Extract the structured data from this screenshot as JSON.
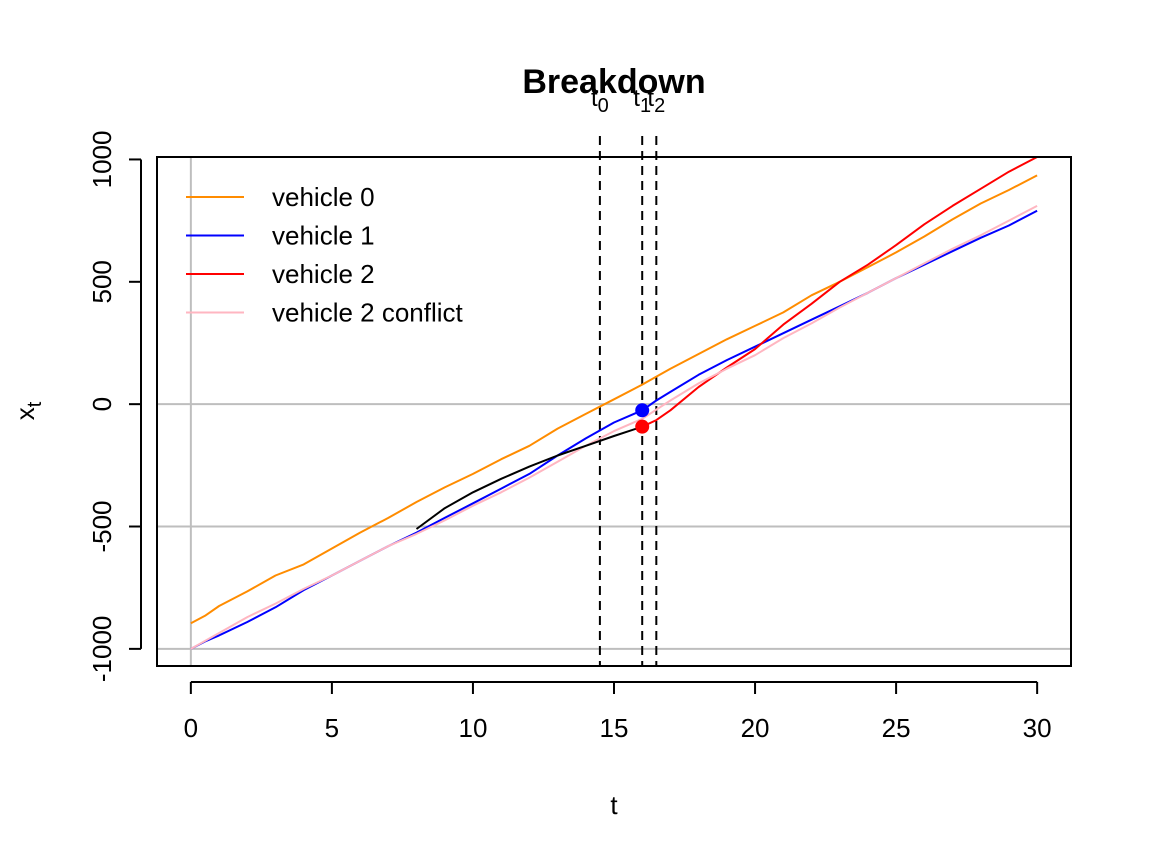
{
  "chart_data": {
    "type": "line",
    "title": "Breakdown",
    "xlabel": "t",
    "ylabel": {
      "base": "x",
      "sub": "t"
    },
    "xlim": [
      -1.2,
      31.2
    ],
    "ylim": [
      -1070,
      1010
    ],
    "x_ticks": [
      0,
      5,
      10,
      15,
      20,
      25,
      30
    ],
    "x_tick_labels": [
      "0",
      "5",
      "10",
      "15",
      "20",
      "25",
      "30"
    ],
    "y_ticks": [
      -1000,
      -500,
      0,
      500,
      1000
    ],
    "y_tick_labels": [
      "-1000",
      "-500",
      "0",
      "500",
      "1000"
    ],
    "reference_lines": {
      "h": [
        -1000,
        -500,
        0
      ],
      "v": [
        0
      ],
      "color": "#bebebe"
    },
    "legend_position": "top-left",
    "series": [
      {
        "name": "vehicle 0",
        "color": "#ff8c00",
        "x": [
          0,
          0.5,
          1,
          2,
          3,
          4,
          5,
          6,
          7,
          8,
          9,
          10,
          11,
          12,
          13,
          14,
          15,
          16,
          17,
          18,
          19,
          20,
          21,
          22,
          23,
          24,
          25,
          26,
          27,
          28,
          29,
          30
        ],
        "y": [
          -895,
          -865,
          -825,
          -765,
          -700,
          -655,
          -590,
          -525,
          -465,
          -400,
          -340,
          -285,
          -225,
          -170,
          -100,
          -40,
          20,
          80,
          145,
          205,
          265,
          320,
          375,
          445,
          500,
          560,
          620,
          685,
          755,
          820,
          875,
          935
        ]
      },
      {
        "name": "vehicle 1",
        "color": "#0000ff",
        "x": [
          0,
          0.5,
          1,
          2,
          3,
          4,
          5,
          6,
          7,
          8,
          9,
          10,
          11,
          12,
          13,
          14,
          15,
          16,
          16.5,
          17,
          18,
          19,
          20,
          21,
          22,
          23,
          24,
          25,
          26,
          27,
          28,
          29,
          30
        ],
        "y": [
          -1000,
          -970,
          -945,
          -890,
          -830,
          -760,
          -700,
          -640,
          -580,
          -525,
          -465,
          -405,
          -345,
          -285,
          -210,
          -140,
          -75,
          -25,
          15,
          50,
          120,
          180,
          235,
          290,
          345,
          400,
          455,
          515,
          570,
          625,
          680,
          730,
          790
        ]
      },
      {
        "name": "vehicle 2",
        "color": "#ff0000",
        "x": [
          16,
          16.5,
          17,
          18,
          19,
          20,
          21,
          22,
          23,
          24,
          25,
          26,
          27,
          28,
          29,
          30
        ],
        "y": [
          -92,
          -65,
          -25,
          70,
          150,
          225,
          325,
          410,
          500,
          570,
          650,
          735,
          810,
          880,
          950,
          1010
        ]
      },
      {
        "name": "vehicle 2 conflict",
        "color": "#ffb6c1",
        "x": [
          0,
          1,
          2,
          3,
          4,
          5,
          6,
          7,
          8,
          9,
          10,
          11,
          12,
          13,
          14,
          15,
          16,
          17,
          18,
          19,
          20,
          21,
          22,
          23,
          24,
          25,
          26,
          27,
          28,
          29,
          30
        ],
        "y": [
          -1000,
          -935,
          -870,
          -815,
          -755,
          -700,
          -640,
          -580,
          -530,
          -475,
          -415,
          -360,
          -300,
          -235,
          -170,
          -110,
          -60,
          15,
          85,
          145,
          200,
          270,
          330,
          395,
          455,
          515,
          575,
          635,
          690,
          750,
          810
        ]
      },
      {
        "color": "#000000",
        "x": [
          8,
          9,
          10,
          11,
          12,
          13,
          14,
          15,
          16
        ],
        "y": [
          -510,
          -425,
          -360,
          -305,
          -255,
          -210,
          -170,
          -130,
          -92
        ]
      }
    ],
    "points": [
      {
        "x": 16,
        "y": -25,
        "color": "#0000ff"
      },
      {
        "x": 16,
        "y": -92,
        "color": "#ff0000"
      }
    ],
    "vertical_markers": [
      {
        "x": 14.5,
        "label": "t",
        "sub": "0"
      },
      {
        "x": 16,
        "label": "t",
        "sub": "1"
      },
      {
        "x": 16.5,
        "label": "t",
        "sub": "2"
      }
    ]
  }
}
